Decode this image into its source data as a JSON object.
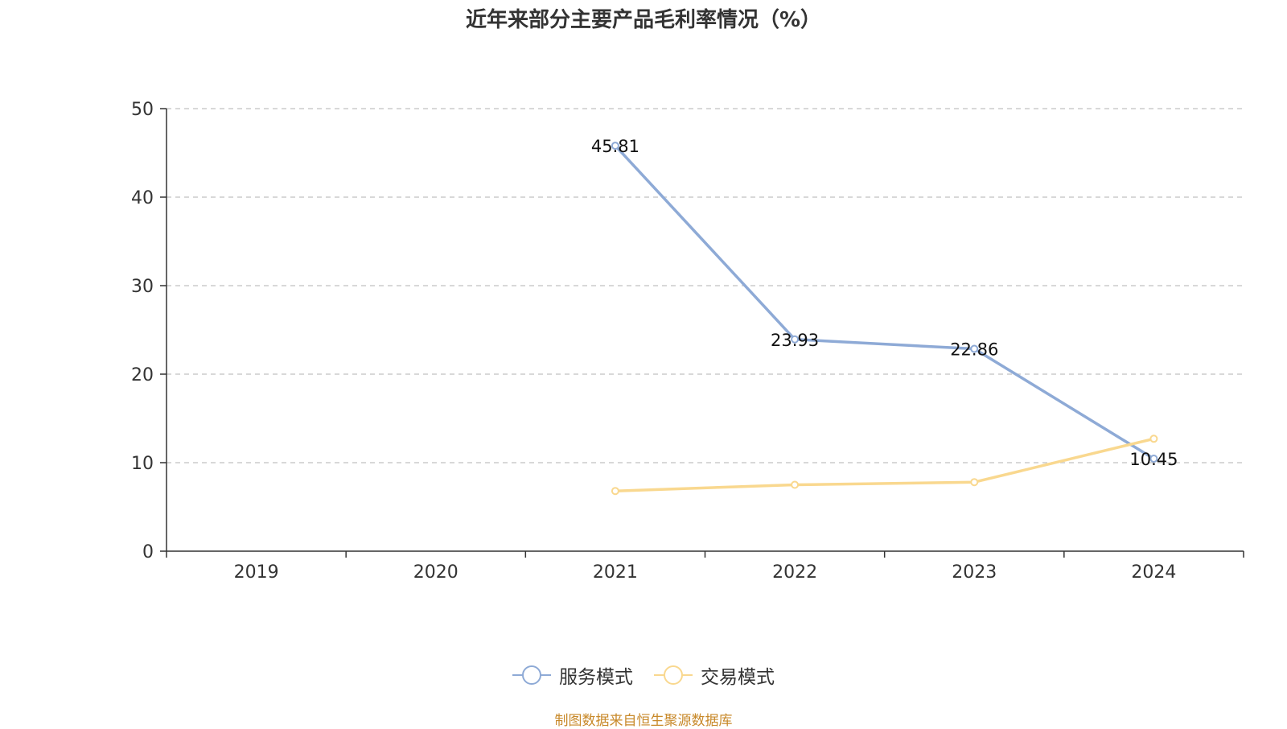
{
  "chart_data": {
    "type": "line",
    "title": "近年来部分主要产品毛利率情况（%）",
    "categories": [
      "2019",
      "2020",
      "2021",
      "2022",
      "2023",
      "2024"
    ],
    "ylim": [
      0,
      50
    ],
    "yticks": [
      0,
      10,
      20,
      30,
      40,
      50
    ],
    "grid": true,
    "legend_position": "bottom",
    "series": [
      {
        "name": "服务模式",
        "color": "#8eaad6",
        "values": [
          null,
          null,
          45.81,
          23.93,
          22.86,
          10.45
        ],
        "labels": [
          "",
          "",
          "45.81",
          "23.93",
          "22.86",
          "10.45"
        ]
      },
      {
        "name": "交易模式",
        "color": "#f9d88f",
        "values": [
          null,
          null,
          6.8,
          7.5,
          7.8,
          12.7
        ],
        "labels": [
          "",
          "",
          "",
          "",
          "",
          ""
        ]
      }
    ],
    "source": "制图数据来自恒生聚源数据库"
  }
}
